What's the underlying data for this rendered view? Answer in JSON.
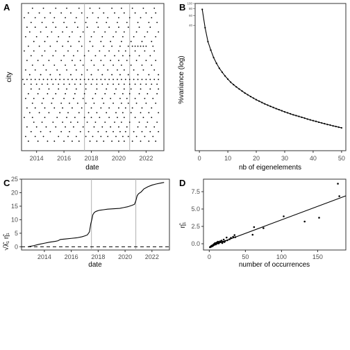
{
  "chart_data": [
    {
      "panel": "A",
      "type": "scatter",
      "xlabel": "date",
      "ylabel": "city",
      "x_ticks": [
        "2014",
        "2016",
        "2018",
        "2020",
        "2022"
      ],
      "xlim": [
        2012.9,
        2023.3
      ],
      "ylim": [
        0,
        31
      ],
      "vlines": [
        2017.5,
        2020.8
      ],
      "grid": false,
      "rows": [
        {
          "y": 2,
          "x": [
            2013.4,
            2014.1,
            2014.8,
            2015.3,
            2016.0,
            2016.6,
            2017.1,
            2017.9,
            2018.4,
            2018.9,
            2019.5,
            2020.0,
            2020.4,
            2021.0,
            2021.6,
            2022.2,
            2022.7
          ]
        },
        {
          "y": 3,
          "x": [
            2013.2,
            2013.9,
            2014.5,
            2015.6,
            2016.3,
            2016.9,
            2017.6,
            2018.1,
            2018.7,
            2019.2,
            2019.8,
            2020.3,
            2020.7,
            2021.3,
            2021.9,
            2022.5
          ]
        },
        {
          "y": 4,
          "x": [
            2013.6,
            2014.3,
            2015.0,
            2015.8,
            2016.4,
            2017.2,
            2017.8,
            2018.5,
            2019.1,
            2019.6,
            2020.1,
            2020.5,
            2021.1,
            2021.7,
            2022.3,
            2022.9
          ]
        },
        {
          "y": 5,
          "x": [
            2013.3,
            2014.0,
            2014.7,
            2015.4,
            2016.1,
            2016.7,
            2017.4,
            2018.2,
            2018.8,
            2019.4,
            2020.0,
            2020.6,
            2021.4,
            2022.0,
            2022.6
          ]
        },
        {
          "y": 6,
          "x": [
            2013.8,
            2014.4,
            2015.2,
            2015.9,
            2016.5,
            2017.0,
            2017.7,
            2018.3,
            2019.0,
            2019.7,
            2020.2,
            2020.8,
            2021.5,
            2022.1,
            2022.8
          ]
        },
        {
          "y": 7,
          "x": [
            2013.1,
            2013.7,
            2014.6,
            2015.5,
            2016.2,
            2016.8,
            2017.5,
            2018.0,
            2018.6,
            2019.3,
            2019.9,
            2020.4,
            2021.2,
            2021.8,
            2022.4
          ]
        },
        {
          "y": 8,
          "x": [
            2013.5,
            2014.2,
            2014.9,
            2015.7,
            2016.3,
            2017.1,
            2017.8,
            2018.4,
            2019.1,
            2019.8,
            2020.3,
            2020.9,
            2021.6,
            2022.2,
            2022.9
          ]
        },
        {
          "y": 9,
          "x": [
            2013.3,
            2013.9,
            2014.6,
            2015.3,
            2015.9,
            2016.6,
            2017.3,
            2018.0,
            2018.7,
            2019.3,
            2020.0,
            2020.5,
            2021.0,
            2021.7,
            2022.4
          ]
        },
        {
          "y": 10,
          "x": [
            2013.7,
            2014.4,
            2015.1,
            2015.8,
            2016.4,
            2017.0,
            2017.6,
            2018.2,
            2018.9,
            2019.6,
            2020.2,
            2020.7,
            2021.3,
            2022.0,
            2022.7
          ]
        },
        {
          "y": 11,
          "x": [
            2013.2,
            2013.8,
            2014.5,
            2015.2,
            2016.0,
            2016.7,
            2017.4,
            2018.1,
            2018.8,
            2019.4,
            2020.1,
            2020.6,
            2021.2,
            2021.9,
            2022.5
          ]
        },
        {
          "y": 12,
          "x": [
            2013.4,
            2014.1,
            2014.8,
            2015.4,
            2016.1,
            2016.8,
            2017.5,
            2018.3,
            2019.0,
            2019.7,
            2020.3,
            2020.8,
            2021.5,
            2022.1,
            2022.8
          ]
        },
        {
          "y": 13,
          "x": [
            2013.6,
            2014.2,
            2014.9,
            2015.6,
            2016.2,
            2016.9,
            2017.6,
            2018.4,
            2019.1,
            2019.8,
            2020.4,
            2020.9,
            2021.6,
            2022.3,
            2022.9
          ]
        },
        {
          "y": 14,
          "x": [
            2013.1,
            2013.6,
            2014.0,
            2014.4,
            2014.8,
            2015.2,
            2015.6,
            2016.0,
            2016.4,
            2016.8,
            2017.2,
            2017.6,
            2018.0,
            2018.4,
            2018.8,
            2019.2,
            2019.6,
            2020.0,
            2020.4,
            2020.8,
            2021.2,
            2021.6,
            2022.0,
            2022.4,
            2022.8
          ]
        },
        {
          "y": 15,
          "x": [
            2013.0,
            2013.3,
            2013.6,
            2013.9,
            2014.2,
            2014.5,
            2014.8,
            2015.1,
            2015.4,
            2015.7,
            2016.0,
            2016.3,
            2016.6,
            2016.9,
            2017.2,
            2017.5,
            2017.8,
            2018.1,
            2018.4,
            2018.7,
            2019.0,
            2019.3,
            2019.6,
            2019.9,
            2020.2,
            2020.5,
            2020.8,
            2021.1,
            2021.4,
            2021.7,
            2022.0,
            2022.3,
            2022.6,
            2022.9
          ]
        },
        {
          "y": 16,
          "x": [
            2013.5,
            2014.3,
            2015.0,
            2015.7,
            2016.5,
            2017.3,
            2018.0,
            2018.8,
            2019.5,
            2020.1,
            2020.7,
            2021.4,
            2022.2,
            2022.9
          ]
        },
        {
          "y": 17,
          "x": [
            2013.2,
            2013.9,
            2014.7,
            2015.5,
            2016.2,
            2016.9,
            2017.7,
            2018.5,
            2019.2,
            2019.9,
            2020.4,
            2021.1,
            2021.8,
            2022.6
          ]
        },
        {
          "y": 18,
          "x": [
            2013.7,
            2014.5,
            2015.3,
            2016.1,
            2016.8,
            2017.4,
            2018.2,
            2018.9,
            2019.6,
            2020.2,
            2020.9,
            2021.7,
            2022.4
          ]
        },
        {
          "y": 19,
          "x": [
            2013.3,
            2014.1,
            2014.9,
            2015.8,
            2016.6,
            2017.2,
            2018.0,
            2018.7,
            2019.4,
            2020.0,
            2020.6,
            2021.3,
            2022.0,
            2022.7
          ]
        },
        {
          "y": 20,
          "x": [
            2013.6,
            2014.4,
            2015.2,
            2016.0,
            2016.7,
            2017.5,
            2018.3,
            2019.0,
            2019.7,
            2020.3,
            2020.8,
            2021.5,
            2022.3
          ]
        },
        {
          "y": 21,
          "x": [
            2013.1,
            2013.8,
            2014.6,
            2015.4,
            2016.3,
            2017.0,
            2017.8,
            2018.6,
            2019.3,
            2020.0,
            2020.5,
            2021.2,
            2021.9,
            2022.6
          ]
        },
        {
          "y": 22,
          "x": [
            2013.4,
            2014.2,
            2015.0,
            2015.9,
            2016.5,
            2017.3,
            2018.1,
            2018.9,
            2019.5,
            2020.1,
            2020.7,
            2021.0,
            2021.2,
            2021.4,
            2021.6,
            2021.8,
            2022.0,
            2022.5
          ]
        },
        {
          "y": 23,
          "x": [
            2013.8,
            2014.6,
            2015.5,
            2016.3,
            2017.1,
            2017.9,
            2018.7,
            2019.4,
            2020.2,
            2020.9,
            2021.7,
            2022.4
          ]
        },
        {
          "y": 24,
          "x": [
            2013.2,
            2014.0,
            2014.8,
            2015.6,
            2016.4,
            2017.2,
            2018.0,
            2018.8,
            2019.6,
            2020.3,
            2021.1,
            2021.9,
            2022.7
          ]
        },
        {
          "y": 25,
          "x": [
            2013.5,
            2014.3,
            2015.1,
            2015.9,
            2016.6,
            2017.4,
            2018.2,
            2019.0,
            2019.8,
            2020.4,
            2021.3,
            2022.1,
            2022.9
          ]
        },
        {
          "y": 26,
          "x": [
            2013.3,
            2013.9,
            2014.7,
            2015.4,
            2016.2,
            2017.0,
            2017.7,
            2018.5,
            2019.3,
            2020.0,
            2020.7,
            2021.5,
            2022.3
          ]
        },
        {
          "y": 27,
          "x": [
            2013.6,
            2014.4,
            2015.2,
            2016.0,
            2016.8,
            2017.6,
            2018.4,
            2019.1,
            2019.9,
            2020.6,
            2021.4,
            2022.2,
            2022.8
          ]
        },
        {
          "y": 28,
          "x": [
            2013.1,
            2013.9,
            2014.6,
            2015.3,
            2016.1,
            2016.9,
            2017.7,
            2018.5,
            2019.2,
            2020.0,
            2020.8,
            2021.6,
            2022.4
          ]
        },
        {
          "y": 29,
          "x": [
            2013.4,
            2014.2,
            2015.0,
            2015.8,
            2016.5,
            2017.3,
            2018.1,
            2018.9,
            2019.7,
            2020.4,
            2021.2,
            2022.0,
            2022.7
          ]
        },
        {
          "y": 30,
          "x": [
            2013.7,
            2014.5,
            2015.4,
            2016.2,
            2017.1,
            2017.9,
            2018.6,
            2019.5,
            2020.2,
            2021.0,
            2021.8,
            2022.6
          ]
        }
      ]
    },
    {
      "panel": "B",
      "type": "line",
      "xlabel": "nb of eigenelements",
      "ylabel": "%variance (log)",
      "y_scale": "log",
      "x_ticks": [
        0,
        10,
        20,
        30,
        40,
        50
      ],
      "y_tick_labels_small": [
        "100",
        "80",
        "60",
        "40"
      ],
      "xlim": [
        -1.5,
        51.5
      ],
      "ylim_log": [
        0.2,
        100
      ],
      "grid": false,
      "x": [
        1,
        2,
        3,
        4,
        5,
        6,
        7,
        8,
        9,
        10,
        11,
        12,
        13,
        14,
        15,
        16,
        17,
        18,
        19,
        20,
        21,
        22,
        23,
        24,
        25,
        26,
        27,
        28,
        29,
        30,
        31,
        32,
        33,
        34,
        35,
        36,
        37,
        38,
        39,
        40,
        41,
        42,
        43,
        44,
        45,
        46,
        47,
        48,
        49,
        50
      ],
      "values": [
        78,
        36,
        20,
        14,
        10.2,
        8.0,
        6.5,
        5.5,
        4.7,
        4.1,
        3.6,
        3.25,
        2.95,
        2.7,
        2.48,
        2.28,
        2.12,
        1.97,
        1.84,
        1.72,
        1.62,
        1.53,
        1.44,
        1.37,
        1.3,
        1.24,
        1.18,
        1.13,
        1.08,
        1.03,
        0.99,
        0.95,
        0.91,
        0.88,
        0.85,
        0.82,
        0.79,
        0.76,
        0.735,
        0.71,
        0.69,
        0.665,
        0.645,
        0.625,
        0.605,
        0.59,
        0.57,
        0.555,
        0.54,
        0.525
      ]
    },
    {
      "panel": "C",
      "type": "line",
      "xlabel": "date",
      "ylabel": "√λ̂₁ η̂₁",
      "x_ticks": [
        "2014",
        "2016",
        "2018",
        "2020",
        "2022"
      ],
      "y_ticks": [
        0,
        5,
        10,
        15,
        20,
        25
      ],
      "xlim": [
        2012.3,
        2023.3
      ],
      "ylim": [
        -1.2,
        25.0
      ],
      "vlines": [
        2017.5,
        2020.8
      ],
      "hline": 0,
      "grid": false,
      "x": [
        2012.8,
        2013.2,
        2013.6,
        2014.0,
        2014.4,
        2014.8,
        2015.0,
        2015.2,
        2015.6,
        2016.0,
        2016.4,
        2016.8,
        2017.0,
        2017.2,
        2017.35,
        2017.45,
        2017.55,
        2017.6,
        2017.7,
        2017.8,
        2017.9,
        2018.1,
        2018.4,
        2018.7,
        2019.0,
        2019.3,
        2019.6,
        2019.9,
        2020.2,
        2020.5,
        2020.7,
        2020.8,
        2020.9,
        2021.0,
        2021.2,
        2021.4,
        2021.7,
        2022.0,
        2022.3,
        2022.6,
        2022.9
      ],
      "values": [
        0.0,
        0.4,
        0.9,
        1.3,
        1.7,
        2.0,
        2.2,
        2.7,
        2.9,
        3.1,
        3.3,
        3.7,
        4.0,
        4.4,
        5.5,
        8.5,
        10.5,
        11.8,
        12.6,
        13.0,
        13.2,
        13.5,
        13.7,
        13.9,
        14.0,
        14.1,
        14.2,
        14.5,
        14.8,
        15.3,
        15.7,
        17.0,
        18.9,
        19.6,
        20.3,
        21.4,
        22.2,
        22.8,
        23.2,
        23.5,
        23.8
      ]
    },
    {
      "panel": "D",
      "type": "scatter",
      "xlabel": "number of occurrences",
      "ylabel": "η̂₁",
      "x_ticks": [
        0,
        50,
        100,
        150
      ],
      "y_ticks": [
        0.0,
        2.5,
        5.0,
        7.5
      ],
      "xlim": [
        -8,
        189
      ],
      "ylim": [
        -0.9,
        9.3
      ],
      "fit_line": {
        "x": [
          0,
          189
        ],
        "y": [
          -0.45,
          6.9
        ]
      },
      "grid": false,
      "x": [
        1,
        2,
        2,
        3,
        3,
        4,
        4,
        5,
        5,
        6,
        6,
        7,
        7,
        8,
        8,
        9,
        9,
        10,
        10,
        11,
        11,
        12,
        12,
        13,
        13,
        14,
        15,
        16,
        17,
        18,
        19,
        20,
        21,
        22,
        24,
        25,
        28,
        30,
        33,
        35,
        36,
        60,
        62,
        75,
        103,
        132,
        152,
        178,
        180
      ],
      "values": [
        -0.5,
        -0.45,
        -0.4,
        -0.4,
        -0.3,
        -0.35,
        -0.25,
        -0.3,
        -0.2,
        -0.2,
        -0.1,
        -0.15,
        0.0,
        -0.05,
        0.1,
        0.0,
        -0.1,
        0.1,
        0.15,
        0.05,
        0.2,
        0.15,
        0.3,
        0.2,
        0.05,
        0.25,
        0.35,
        0.3,
        0.45,
        0.1,
        0.3,
        0.6,
        0.25,
        0.4,
        0.9,
        0.5,
        0.65,
        0.85,
        1.0,
        1.25,
        0.95,
        1.3,
        2.4,
        2.25,
        3.95,
        3.2,
        3.75,
        8.65,
        6.85
      ]
    }
  ]
}
